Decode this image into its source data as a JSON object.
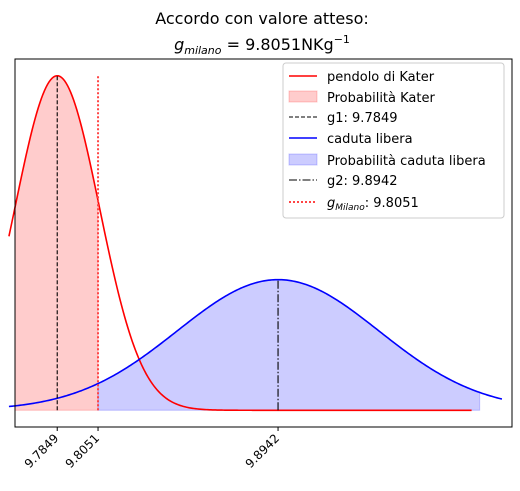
{
  "chart_data": {
    "type": "area",
    "title": "Accordo con valore atteso:",
    "subtitle_prefix": "g",
    "subtitle_sub": "milano",
    "subtitle_rest": " = 9.8051NKg",
    "subtitle_sup": "−1",
    "xlim": [
      9.764,
      10.01
    ],
    "ylim": [
      -0.05,
      1.05
    ],
    "xticks": [
      {
        "value": 9.7849,
        "label": "9.7849"
      },
      {
        "value": 9.8051,
        "label": "9.8051"
      },
      {
        "value": 9.8942,
        "label": "9.8942"
      }
    ],
    "series": [
      {
        "name": "pendolo di Kater",
        "kind": "gaussian",
        "mean": 9.7849,
        "sigma": 0.0209,
        "amplitude": 1.0,
        "x_range": [
          9.761,
          9.99
        ],
        "color": "#ff0000"
      },
      {
        "name": "caduta libera",
        "kind": "gaussian",
        "mean": 9.8942,
        "sigma": 0.05,
        "amplitude": 0.3905,
        "x_range": [
          9.761,
          10.005
        ],
        "color": "#0000ff"
      }
    ],
    "fills": [
      {
        "name": "Probabilità Kater",
        "series": 0,
        "from": 9.764,
        "to": 9.8051,
        "color": "#ff0000",
        "alpha": 0.2
      },
      {
        "name": "Probabilità caduta libera",
        "series": 1,
        "from": 9.8051,
        "to": 9.994,
        "color": "#0000ff",
        "alpha": 0.2
      }
    ],
    "vlines": [
      {
        "name": "g1",
        "label_text": "g1: 9.7849",
        "x": 9.7849,
        "series": 0,
        "style": "dashed",
        "color": "#000000"
      },
      {
        "name": "g2",
        "label_text": "g2: 9.8942",
        "x": 9.8942,
        "series": 1,
        "style": "dashdot",
        "color": "#000000"
      },
      {
        "name": "gMilano",
        "label_sym": "g",
        "label_sub": "Milano",
        "label_val": ": 9.8051",
        "x": 9.8051,
        "top": 1.0,
        "style": "dotted",
        "color": "#ff4444"
      }
    ],
    "legend_position": "top-right",
    "grid": false
  }
}
